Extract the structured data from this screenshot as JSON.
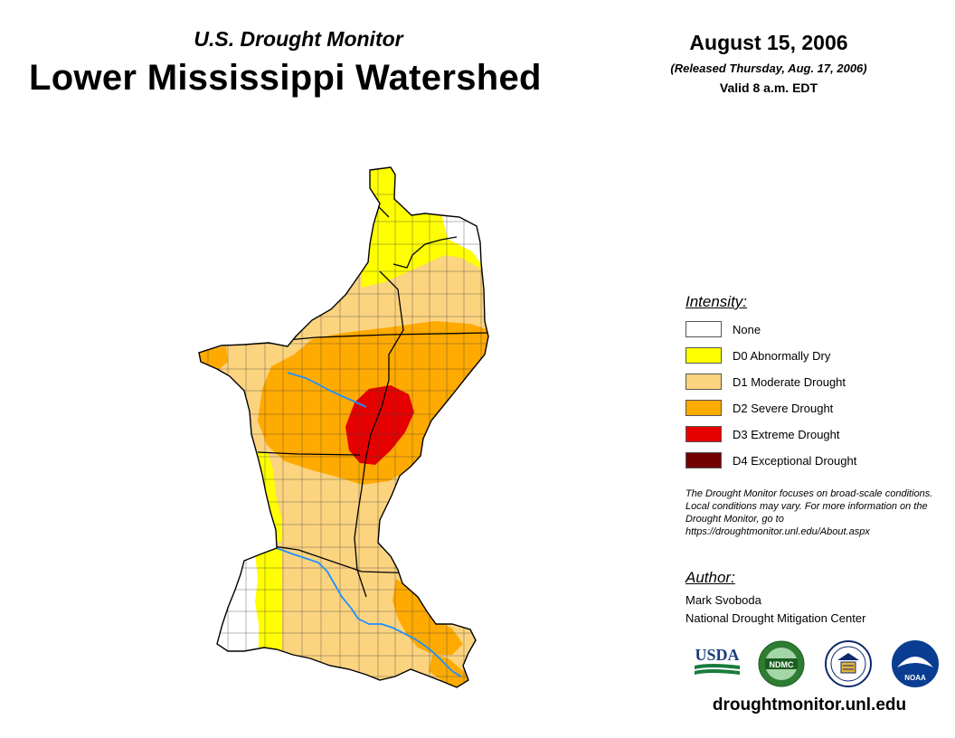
{
  "header": {
    "subtitle": "U.S. Drought Monitor",
    "title": "Lower Mississippi Watershed",
    "date": "August 15, 2006",
    "released": "(Released Thursday, Aug. 17, 2006)",
    "valid": "Valid 8 a.m. EDT"
  },
  "legend": {
    "title": "Intensity:",
    "items": [
      {
        "label": "None",
        "color": "#ffffff"
      },
      {
        "label": "D0 Abnormally Dry",
        "color": "#ffff00"
      },
      {
        "label": "D1 Moderate Drought",
        "color": "#fcd37f"
      },
      {
        "label": "D2 Severe Drought",
        "color": "#ffaa00"
      },
      {
        "label": "D3 Extreme Drought",
        "color": "#e60000"
      },
      {
        "label": "D4 Exceptional Drought",
        "color": "#730000"
      }
    ]
  },
  "note": "The Drought Monitor focuses on broad-scale conditions. Local conditions may vary. For more information on the Drought Monitor, go to https://droughtmonitor.unl.edu/About.aspx",
  "author": {
    "title": "Author:",
    "name": "Mark Svoboda",
    "organization": "National Drought Mitigation Center"
  },
  "logos": [
    {
      "name": "usda-logo",
      "text": "USDA"
    },
    {
      "name": "ndmc-logo",
      "text": "NDMC"
    },
    {
      "name": "commerce-logo",
      "text": ""
    },
    {
      "name": "noaa-logo",
      "text": "NOAA"
    }
  ],
  "footer": {
    "url": "droughtmonitor.unl.edu"
  },
  "colors": {
    "river": "#1e90ff",
    "border": "#000000"
  }
}
